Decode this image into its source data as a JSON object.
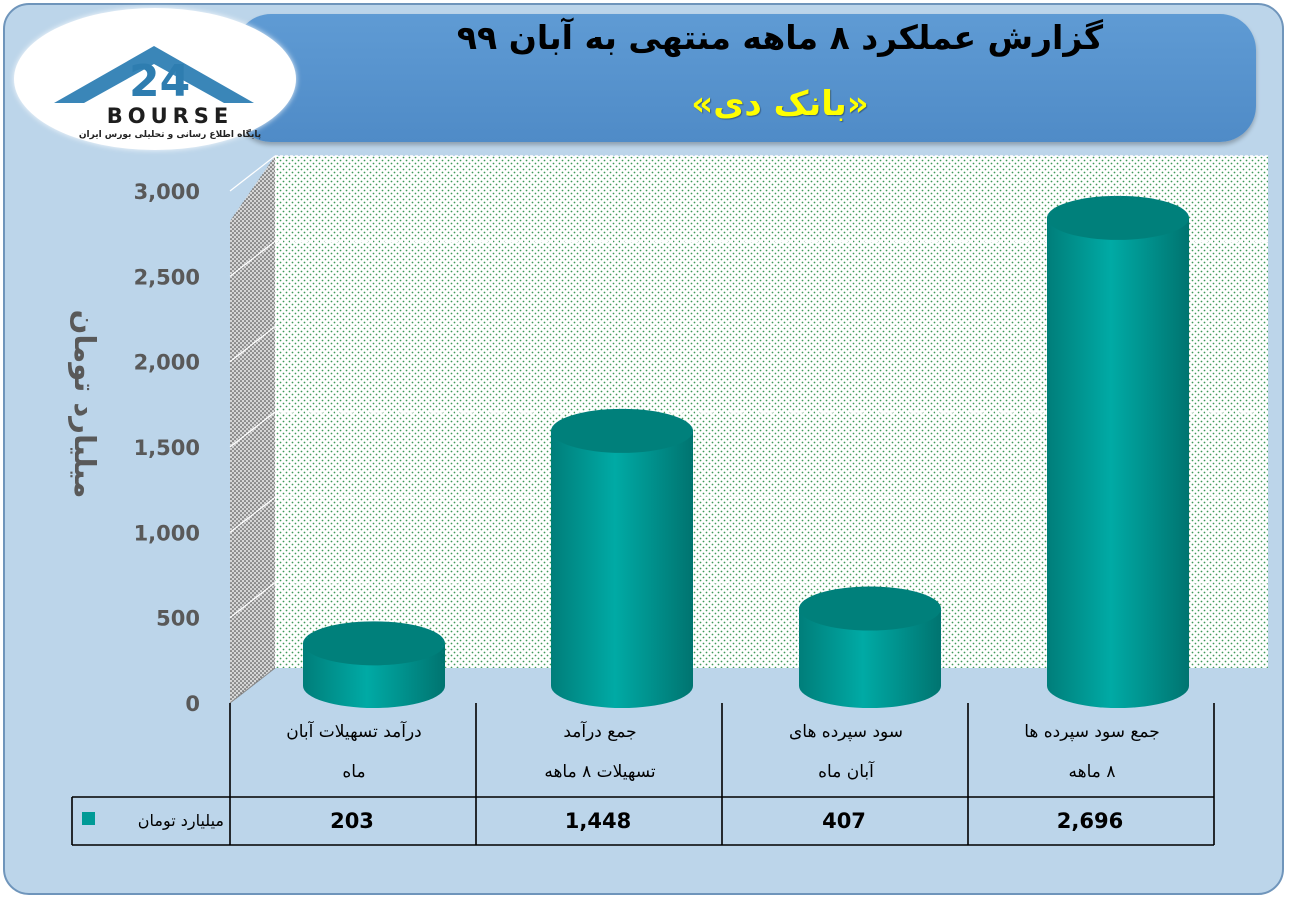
{
  "header": {
    "title": "گزارش عملکرد ۸ ماهه منتهی به آبان ۹۹",
    "subtitle": "«بانک دی»"
  },
  "logo": {
    "text": "BOURSE",
    "tagline": "پایگاه اطلاع رسانی و تحلیلی بورس ایران"
  },
  "colors": {
    "bar": "#009e99",
    "bar_dark": "#007470",
    "bar_top": "#00807b",
    "background": "#bcd5ea",
    "banner": "#5b97d1",
    "subtitle": "#ffff00"
  },
  "chart_data": {
    "type": "bar",
    "style": "3d-cylinder",
    "ylabel": "میلیارد تومان",
    "ylim": [
      0,
      3000
    ],
    "yticks": [
      "0",
      "500",
      "1,000",
      "1,500",
      "2,000",
      "2,500",
      "3,000"
    ],
    "grid": true,
    "categories": [
      [
        "درآمد تسهیلات آبان",
        "ماه"
      ],
      [
        "جمع درآمد",
        "تسهیلات ۸ ماهه"
      ],
      [
        "سود سپرده های",
        "آبان ماه"
      ],
      [
        "جمع سود سپرده ها",
        "۸ ماهه"
      ]
    ],
    "series": [
      {
        "name": "میلیارد تومان",
        "values": [
          203,
          1448,
          407,
          2696
        ],
        "labels": [
          "203",
          "1,448",
          "407",
          "2,696"
        ]
      }
    ],
    "legend": "data-table-left"
  }
}
